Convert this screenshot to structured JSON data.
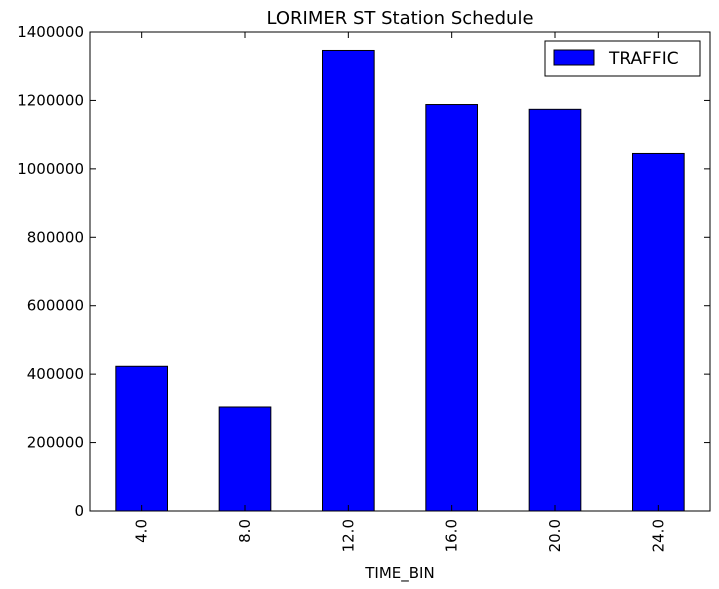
{
  "chart_data": {
    "type": "bar",
    "title": "LORIMER ST Station Schedule",
    "xlabel": "TIME_BIN",
    "ylabel": "",
    "categories": [
      "4.0",
      "8.0",
      "12.0",
      "16.0",
      "20.0",
      "24.0"
    ],
    "series": [
      {
        "name": "TRAFFIC",
        "color": "#0000ff",
        "values": [
          423000,
          304000,
          1346000,
          1188000,
          1174000,
          1045000
        ]
      }
    ],
    "ylim": [
      0,
      1400000
    ],
    "yticks": [
      0,
      200000,
      400000,
      600000,
      800000,
      1000000,
      1200000,
      1400000
    ],
    "ytick_labels": [
      "0",
      "200000",
      "400000",
      "600000",
      "800000",
      "1000000",
      "1200000",
      "1400000"
    ],
    "legend_position": "top-right",
    "grid": false
  }
}
